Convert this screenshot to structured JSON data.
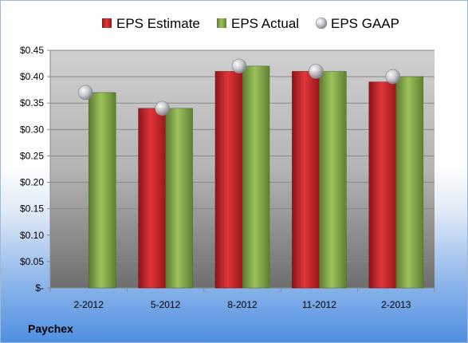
{
  "company": "Paychex",
  "colors": {
    "estimate": "#c0282d",
    "actual": "#7da247",
    "gaap": "#b8bcc2"
  },
  "chart_data": {
    "type": "bar",
    "categories": [
      "2-2012",
      "5-2012",
      "8-2012",
      "11-2012",
      "2-2013"
    ],
    "series": [
      {
        "name": "EPS Estimate",
        "kind": "bar",
        "values": [
          null,
          0.34,
          0.41,
          0.41,
          0.39
        ]
      },
      {
        "name": "EPS Actual",
        "kind": "bar",
        "values": [
          0.37,
          0.34,
          0.42,
          0.41,
          0.4
        ]
      },
      {
        "name": "EPS GAAP",
        "kind": "scatter",
        "values": [
          0.37,
          0.34,
          0.42,
          0.41,
          0.4
        ]
      }
    ],
    "y_ticks": [
      0,
      0.05,
      0.1,
      0.15,
      0.2,
      0.25,
      0.3,
      0.35,
      0.4,
      0.45
    ],
    "y_tick_labels": [
      "$-",
      "$0.05",
      "$0.10",
      "$0.15",
      "$0.20",
      "$0.25",
      "$0.30",
      "$0.35",
      "$0.40",
      "$0.45"
    ],
    "ylim": [
      0,
      0.45
    ],
    "legend_position": "top",
    "grid": true
  }
}
